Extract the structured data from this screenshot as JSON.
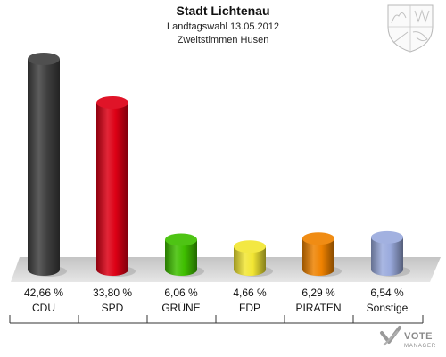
{
  "header": {
    "title": "Stadt Lichtenau",
    "subtitle1": "Landtagswahl 13.05.2012",
    "subtitle2": "Zweitstimmen Husen"
  },
  "watermark": {
    "line1": "VOTE",
    "line2": "MANAGER"
  },
  "crest_icon": "nrw-coat-of-arms-icon",
  "chart_data": {
    "type": "bar",
    "categories": [
      "CDU",
      "SPD",
      "GRÜNE",
      "FDP",
      "PIRATEN",
      "Sonstige"
    ],
    "values": [
      42.66,
      33.8,
      6.06,
      4.66,
      6.29,
      6.54
    ],
    "value_labels": [
      "42,66 %",
      "33,80 %",
      "6,06 %",
      "4,66 %",
      "6,29 %",
      "6,54 %"
    ],
    "colors": [
      "#404040",
      "#dd0015",
      "#3fbf00",
      "#f2e633",
      "#ef8200",
      "#9aaadd"
    ],
    "title": "Stadt Lichtenau",
    "grid": false,
    "legend": "none"
  }
}
